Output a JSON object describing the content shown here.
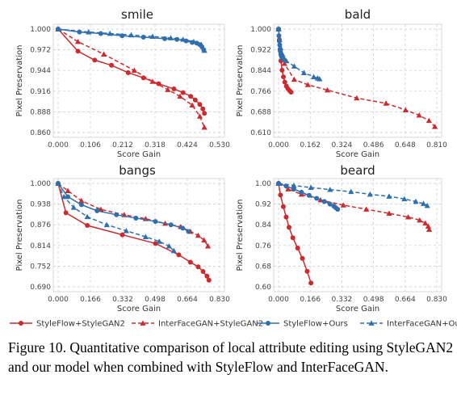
{
  "figure": {
    "caption": "Figure 10. Quantitative comparison of local attribute editing using StyleGAN2 and our model when combined with StyleFlow and InterFaceGAN."
  },
  "colors": {
    "red": "#cc2a2e",
    "blue": "#2f6fae"
  },
  "legend": [
    {
      "label": "StyleFlow+StyleGAN2",
      "color": "#cc2a2e",
      "marker": "circle",
      "dash": false
    },
    {
      "label": "InterFaceGAN+StyleGAN2",
      "color": "#cc2a2e",
      "marker": "triangle",
      "dash": true
    },
    {
      "label": "StyleFlow+Ours",
      "color": "#2f6fae",
      "marker": "circle",
      "dash": false
    },
    {
      "label": "InterFaceGAN+Ours",
      "color": "#2f6fae",
      "marker": "triangle",
      "dash": true
    }
  ],
  "chart_data": [
    {
      "type": "line",
      "title": "smile",
      "xlabel": "Score Gain",
      "ylabel": "Pixel Preservation",
      "xlim": [
        0,
        0.53
      ],
      "ylim": [
        0.86,
        1.0
      ],
      "xticks": [
        "0.000",
        "0.106",
        "0.212",
        "0.318",
        "0.424",
        "0.530"
      ],
      "yticks": [
        "0.860",
        "0.888",
        "0.916",
        "0.944",
        "0.972",
        "1.000"
      ],
      "grid": true,
      "series": [
        {
          "name": "StyleFlow+StyleGAN2",
          "x": [
            0,
            0.065,
            0.12,
            0.175,
            0.23,
            0.28,
            0.33,
            0.38,
            0.41,
            0.435,
            0.45,
            0.465,
            0.475,
            0.48
          ],
          "y": [
            1.0,
            0.97,
            0.958,
            0.951,
            0.941,
            0.934,
            0.926,
            0.919,
            0.914,
            0.909,
            0.904,
            0.898,
            0.892,
            0.886
          ]
        },
        {
          "name": "InterFaceGAN+StyleGAN2",
          "x": [
            0,
            0.065,
            0.15,
            0.25,
            0.31,
            0.36,
            0.4,
            0.44,
            0.465,
            0.48
          ],
          "y": [
            1.0,
            0.983,
            0.966,
            0.944,
            0.929,
            0.918,
            0.909,
            0.897,
            0.882,
            0.867
          ]
        },
        {
          "name": "StyleFlow+Ours",
          "x": [
            0,
            0.07,
            0.14,
            0.21,
            0.28,
            0.35,
            0.39,
            0.42,
            0.44,
            0.455,
            0.465,
            0.472,
            0.478
          ],
          "y": [
            1.0,
            0.996,
            0.994,
            0.991,
            0.989,
            0.987,
            0.986,
            0.984,
            0.982,
            0.981,
            0.979,
            0.976,
            0.972
          ]
        },
        {
          "name": "InterFaceGAN+Ours",
          "x": [
            0,
            0.1,
            0.17,
            0.24,
            0.31,
            0.37,
            0.41,
            0.445,
            0.47,
            0.48
          ],
          "y": [
            1.0,
            0.996,
            0.994,
            0.992,
            0.99,
            0.988,
            0.986,
            0.983,
            0.979,
            0.971
          ]
        }
      ]
    },
    {
      "type": "line",
      "title": "bald",
      "xlabel": "Score Gain",
      "ylabel": "Pixel Preservation",
      "xlim": [
        0,
        0.81
      ],
      "ylim": [
        0.61,
        1.0
      ],
      "xticks": [
        "0.000",
        "0.162",
        "0.324",
        "0.486",
        "0.648",
        "0.810"
      ],
      "yticks": [
        "0.610",
        "0.688",
        "0.766",
        "0.844",
        "0.922",
        "1.000"
      ],
      "grid": true,
      "series": [
        {
          "name": "StyleFlow+StyleGAN2",
          "x": [
            0,
            0.004,
            0.008,
            0.012,
            0.018,
            0.025,
            0.032,
            0.04,
            0.048,
            0.056,
            0.064
          ],
          "y": [
            1.0,
            0.96,
            0.92,
            0.88,
            0.845,
            0.82,
            0.8,
            0.785,
            0.775,
            0.768,
            0.762
          ]
        },
        {
          "name": "InterFaceGAN+StyleGAN2",
          "x": [
            0,
            0.01,
            0.03,
            0.08,
            0.15,
            0.25,
            0.4,
            0.55,
            0.65,
            0.72,
            0.77,
            0.8
          ],
          "y": [
            1.0,
            0.93,
            0.87,
            0.81,
            0.79,
            0.77,
            0.74,
            0.72,
            0.695,
            0.675,
            0.655,
            0.632
          ]
        },
        {
          "name": "StyleFlow+Ours",
          "x": [
            0,
            0.002,
            0.004,
            0.006,
            0.008,
            0.01,
            0.012,
            0.014,
            0.016,
            0.018,
            0.02,
            0.025
          ],
          "y": [
            1.0,
            0.975,
            0.955,
            0.94,
            0.925,
            0.915,
            0.905,
            0.9,
            0.895,
            0.892,
            0.89,
            0.888
          ]
        },
        {
          "name": "InterFaceGAN+Ours",
          "x": [
            0,
            0.005,
            0.01,
            0.02,
            0.04,
            0.08,
            0.13,
            0.18,
            0.2,
            0.21
          ],
          "y": [
            1.0,
            0.96,
            0.93,
            0.905,
            0.88,
            0.86,
            0.835,
            0.82,
            0.815,
            0.812
          ]
        }
      ]
    },
    {
      "type": "line",
      "title": "bangs",
      "xlabel": "Score Gain",
      "ylabel": "Pixel Preservation",
      "xlim": [
        0,
        0.83
      ],
      "ylim": [
        0.69,
        1.0
      ],
      "xticks": [
        "0.000",
        "0.166",
        "0.332",
        "0.498",
        "0.664",
        "0.830"
      ],
      "yticks": [
        "0.690",
        "0.752",
        "0.814",
        "0.876",
        "0.938",
        "1.000"
      ],
      "grid": true,
      "series": [
        {
          "name": "StyleFlow+StyleGAN2",
          "x": [
            0,
            0.04,
            0.15,
            0.33,
            0.5,
            0.62,
            0.68,
            0.72,
            0.745,
            0.765,
            0.775
          ],
          "y": [
            1.0,
            0.912,
            0.874,
            0.846,
            0.82,
            0.786,
            0.764,
            0.75,
            0.736,
            0.722,
            0.71
          ]
        },
        {
          "name": "InterFaceGAN+StyleGAN2",
          "x": [
            0,
            0.05,
            0.12,
            0.22,
            0.34,
            0.45,
            0.55,
            0.63,
            0.68,
            0.72,
            0.75,
            0.77
          ],
          "y": [
            1.0,
            0.978,
            0.948,
            0.922,
            0.906,
            0.894,
            0.88,
            0.87,
            0.856,
            0.844,
            0.83,
            0.812
          ]
        },
        {
          "name": "StyleFlow+Ours",
          "x": [
            0,
            0.05,
            0.12,
            0.2,
            0.3,
            0.4,
            0.5,
            0.58,
            0.64,
            0.67
          ],
          "y": [
            1.0,
            0.96,
            0.936,
            0.918,
            0.906,
            0.896,
            0.886,
            0.876,
            0.866,
            0.856
          ]
        },
        {
          "name": "InterFaceGAN+Ours",
          "x": [
            0,
            0.03,
            0.08,
            0.15,
            0.25,
            0.35,
            0.45,
            0.52,
            0.57,
            0.595
          ],
          "y": [
            1.0,
            0.96,
            0.928,
            0.9,
            0.876,
            0.858,
            0.84,
            0.826,
            0.812,
            0.798
          ]
        }
      ]
    },
    {
      "type": "line",
      "title": "beard",
      "xlabel": "Score Gain",
      "ylabel": "Pixel Preservation",
      "xlim": [
        0,
        0.83
      ],
      "ylim": [
        0.6,
        1.0
      ],
      "xticks": [
        "0.000",
        "0.166",
        "0.332",
        "0.498",
        "0.664",
        "0.830"
      ],
      "yticks": [
        "0.60",
        "0.68",
        "0.76",
        "0.84",
        "0.92",
        "1.00"
      ],
      "grid": true,
      "series": [
        {
          "name": "StyleFlow+StyleGAN2",
          "x": [
            0,
            0.01,
            0.025,
            0.04,
            0.055,
            0.075,
            0.1,
            0.125,
            0.15,
            0.17
          ],
          "y": [
            1.0,
            0.955,
            0.91,
            0.87,
            0.83,
            0.79,
            0.75,
            0.71,
            0.66,
            0.615
          ]
        },
        {
          "name": "InterFaceGAN+StyleGAN2",
          "x": [
            0,
            0.05,
            0.12,
            0.22,
            0.34,
            0.46,
            0.58,
            0.68,
            0.74,
            0.77,
            0.785,
            0.79
          ],
          "y": [
            1.0,
            0.978,
            0.958,
            0.936,
            0.916,
            0.9,
            0.884,
            0.87,
            0.858,
            0.846,
            0.834,
            0.822
          ]
        },
        {
          "name": "StyleFlow+Ours",
          "x": [
            0,
            0.04,
            0.08,
            0.12,
            0.16,
            0.2,
            0.24,
            0.27,
            0.29,
            0.3,
            0.31
          ],
          "y": [
            1.0,
            0.99,
            0.978,
            0.966,
            0.954,
            0.942,
            0.93,
            0.92,
            0.912,
            0.906,
            0.9
          ]
        },
        {
          "name": "InterFaceGAN+Ours",
          "x": [
            0,
            0.08,
            0.17,
            0.27,
            0.38,
            0.48,
            0.58,
            0.66,
            0.72,
            0.76,
            0.78
          ],
          "y": [
            1.0,
            0.992,
            0.984,
            0.976,
            0.968,
            0.958,
            0.95,
            0.94,
            0.93,
            0.922,
            0.914
          ]
        }
      ]
    }
  ]
}
